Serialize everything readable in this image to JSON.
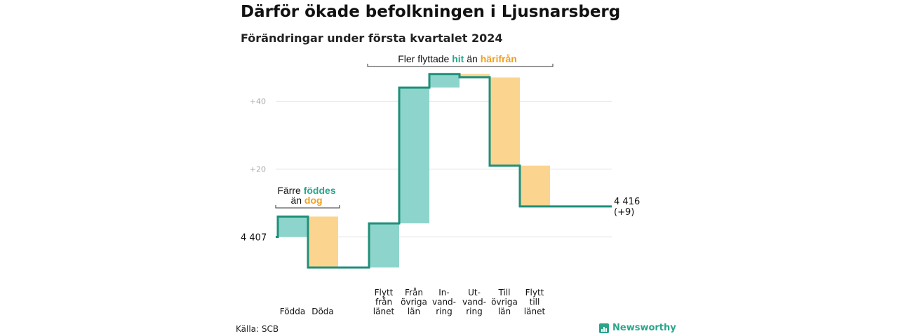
{
  "header": {
    "title": "Därför ökade befolkningen i Ljusnarsberg",
    "subtitle": "Förändringar under första kvartalet 2024"
  },
  "footer": {
    "source": "Källa: SCB",
    "brand": "Newsworthy"
  },
  "colors": {
    "increase": "#8dd5cc",
    "decrease": "#fbd58f",
    "line": "#1f8f7a",
    "accent_teal": "#2aa58c",
    "accent_orange": "#f0a020",
    "grid": "#dddddd"
  },
  "chart_data": {
    "type": "waterfall",
    "start_value": 4407,
    "start_label": "4 407",
    "end_label": "4 416",
    "end_change_label": "(+9)",
    "ylim": [
      4398,
      4457
    ],
    "yticks": [
      {
        "value": 4447,
        "label": "+40"
      },
      {
        "value": 4427,
        "label": "+20"
      }
    ],
    "grid": true,
    "steps": [
      {
        "key": "fodda",
        "label_lines": [
          "Födda"
        ],
        "change": 6,
        "type": "increase"
      },
      {
        "key": "doda",
        "label_lines": [
          "Döda"
        ],
        "change": -15,
        "type": "decrease"
      },
      {
        "key": "gap",
        "label_lines": [],
        "change": 0,
        "type": "none"
      },
      {
        "key": "flytt_fran_lanet",
        "label_lines": [
          "Flytt",
          "från",
          "länet"
        ],
        "change": 13,
        "type": "increase"
      },
      {
        "key": "fran_ovriga_lan",
        "label_lines": [
          "Från",
          "övriga",
          "län"
        ],
        "change": 40,
        "type": "increase"
      },
      {
        "key": "invandring",
        "label_lines": [
          "In-",
          "vand-",
          "ring"
        ],
        "change": 4,
        "type": "increase"
      },
      {
        "key": "utvandring",
        "label_lines": [
          "Ut-",
          "vand-",
          "ring"
        ],
        "change": -1,
        "type": "decrease"
      },
      {
        "key": "till_ovriga_lan",
        "label_lines": [
          "Till",
          "övriga",
          "län"
        ],
        "change": -26,
        "type": "decrease"
      },
      {
        "key": "flytt_till_lanet",
        "label_lines": [
          "Flytt",
          "till",
          "länet"
        ],
        "change": -12,
        "type": "decrease"
      }
    ],
    "annotations": [
      {
        "key": "births",
        "lines": [
          [
            {
              "text": "Färre ",
              "style": "plain"
            },
            {
              "text": "föddes",
              "style": "teal"
            }
          ],
          [
            {
              "text": "än ",
              "style": "plain"
            },
            {
              "text": "dog",
              "style": "orange"
            }
          ]
        ]
      },
      {
        "key": "migration",
        "lines": [
          [
            {
              "text": "Fler flyttade ",
              "style": "plain"
            },
            {
              "text": "hit",
              "style": "teal"
            },
            {
              "text": " än ",
              "style": "plain"
            },
            {
              "text": "härifrån",
              "style": "orange"
            }
          ]
        ]
      }
    ]
  }
}
